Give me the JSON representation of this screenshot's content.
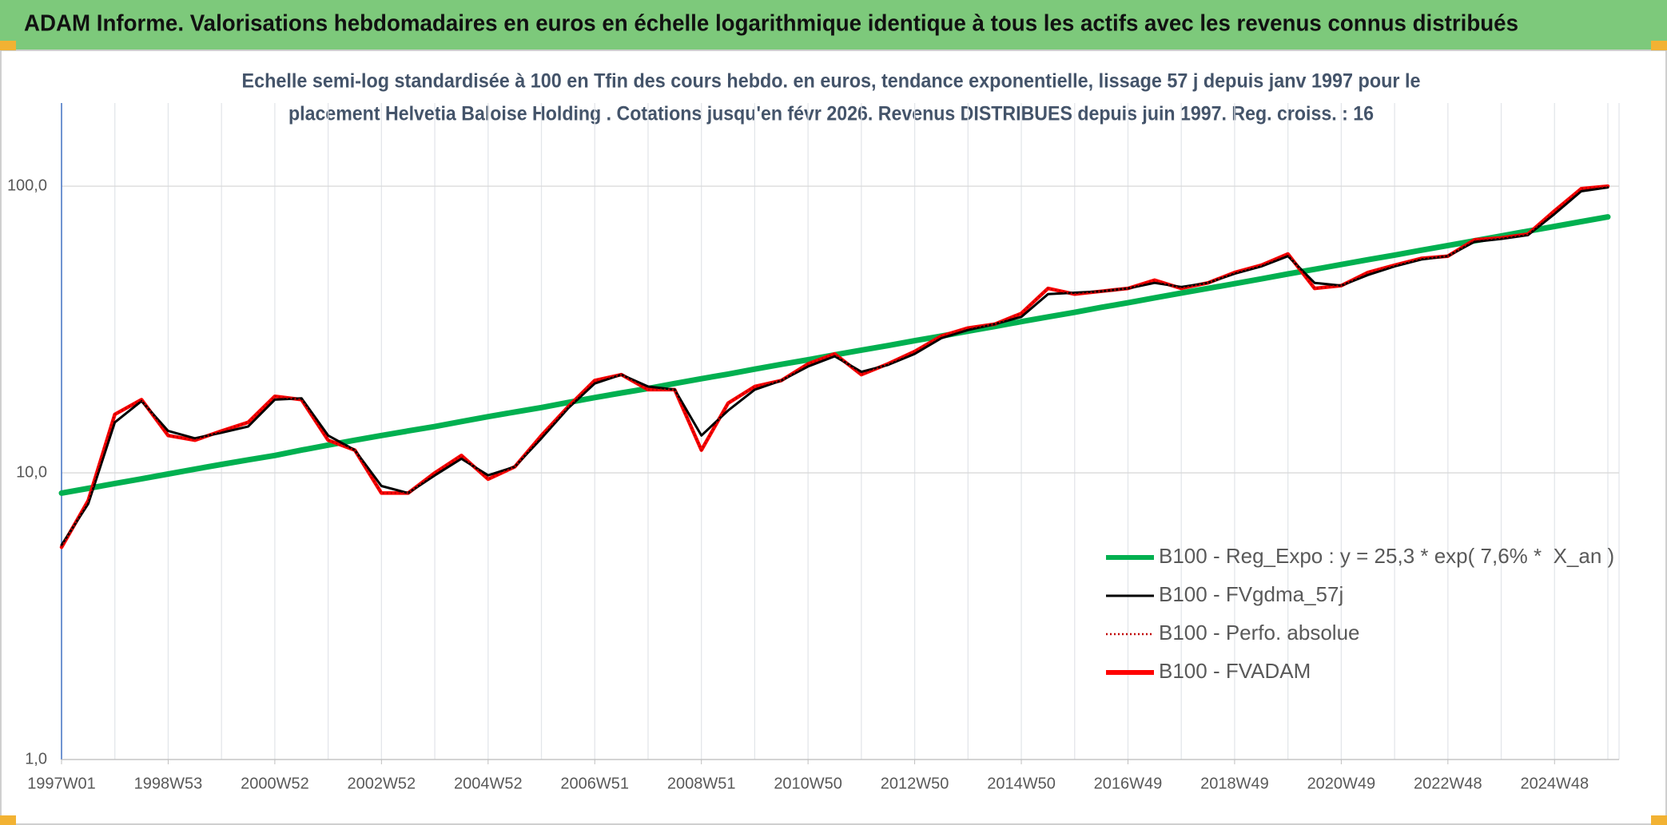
{
  "chart_data": {
    "type": "line",
    "title": "ADAM Informe. Valorisations hebdomadaires en euros en échelle logarithmique identique à tous les actifs avec les revenus connus distribués",
    "subtitle": [
      "Echelle semi-log standardisée à 100 en Tfin des cours hebdo. en euros, tendance exponentielle, lissage 57 j depuis janv 1997 pour le",
      "placement Helvetia Baloise Holding . Cotations jusqu'en févr 2026. Revenus DISTRIBUES depuis juin 1997. Reg. croiss. : 16"
    ],
    "categories": [
      "1997W01",
      null,
      null,
      null,
      "1998W53",
      null,
      null,
      null,
      "2000W52",
      null,
      null,
      null,
      "2002W52",
      null,
      null,
      null,
      "2004W52",
      null,
      null,
      null,
      "2006W51",
      null,
      null,
      null,
      "2008W51",
      null,
      null,
      null,
      "2010W50",
      null,
      null,
      null,
      "2012W50",
      null,
      null,
      null,
      "2014W50",
      null,
      null,
      null,
      "2016W49",
      null,
      null,
      null,
      "2018W49",
      null,
      null,
      null,
      "2020W49",
      null,
      null,
      null,
      "2022W48",
      null,
      null,
      null,
      "2024W48",
      null,
      null
    ],
    "log_scale": true,
    "ylim": [
      1,
      195
    ],
    "yticks": [
      {
        "value": 1,
        "label": "1,0"
      },
      {
        "value": 10,
        "label": "10,0"
      },
      {
        "value": 100,
        "label": "100,0"
      }
    ],
    "grid": true,
    "legend": "right",
    "series": [
      {
        "name": "B100 - Reg_Expo : y = 25,3 * exp( 7,6% *  X_an )",
        "color": "#00b050",
        "style": "solid",
        "values": [
          8.5,
          8.83,
          9.18,
          9.53,
          9.91,
          10.3,
          10.7,
          11.1,
          11.5,
          12.0,
          12.5,
          13.0,
          13.5,
          14.0,
          14.5,
          15.1,
          15.7,
          16.3,
          16.9,
          17.6,
          18.3,
          19.0,
          19.7,
          20.5,
          21.3,
          22.1,
          23.0,
          23.9,
          24.8,
          25.8,
          26.8,
          27.8,
          28.9,
          30.0,
          31.2,
          32.4,
          33.7,
          35.0,
          36.3,
          37.8,
          39.2,
          40.8,
          42.4,
          44.0,
          45.7,
          47.5,
          49.4,
          51.3,
          53.3,
          55.4,
          57.5,
          59.8,
          62.1,
          64.5,
          67.0,
          69.7,
          72.4,
          75.2,
          78.1
        ]
      },
      {
        "name": "B100 - FVgdma_57j",
        "color": "#000000",
        "style": "solid",
        "values": [
          5.6,
          7.8,
          15,
          17.8,
          14,
          13.2,
          13.8,
          14.5,
          18,
          18.2,
          13.5,
          12,
          9,
          8.5,
          9.8,
          11.2,
          9.8,
          10.5,
          13.2,
          16.8,
          20.5,
          22,
          20,
          19.5,
          13.5,
          16.5,
          19.5,
          21,
          23.5,
          25.5,
          22.5,
          23.8,
          26,
          29.5,
          31.5,
          33,
          35,
          42,
          42.5,
          43,
          44,
          46,
          44.5,
          46,
          49.5,
          52.5,
          57,
          46,
          45,
          49,
          52.5,
          55.5,
          57,
          64,
          65.5,
          67.5,
          80,
          96,
          99
        ]
      },
      {
        "name": "B100 - Perfo. absolue",
        "color": "#c00000",
        "style": "dotted",
        "values": [
          5.5,
          8,
          16,
          18,
          13.5,
          13,
          14,
          15,
          18.5,
          18,
          13,
          12,
          8.5,
          8.5,
          10,
          11.5,
          9.5,
          10.5,
          13.5,
          17,
          21,
          22,
          19.5,
          19.5,
          12,
          17.5,
          20,
          21,
          24,
          26,
          22,
          24,
          26.5,
          30,
          32,
          33,
          36,
          44,
          42,
          43,
          44,
          47,
          44,
          46,
          50,
          53,
          58,
          44,
          45,
          50,
          53,
          56,
          57,
          65,
          66,
          68,
          82,
          98,
          100
        ]
      },
      {
        "name": "B100 - FVADAM",
        "color": "#ff0000",
        "style": "solid",
        "values": [
          5.5,
          8,
          16,
          18,
          13.5,
          13,
          14,
          15,
          18.5,
          18,
          13,
          12,
          8.5,
          8.5,
          10,
          11.5,
          9.5,
          10.5,
          13.5,
          17,
          21,
          22,
          19.5,
          19.5,
          12,
          17.5,
          20,
          21,
          24,
          26,
          22,
          24,
          26.5,
          30,
          32,
          33,
          36,
          44,
          42,
          43,
          44,
          47,
          44,
          46,
          50,
          53,
          58,
          44,
          45,
          50,
          53,
          56,
          57,
          65,
          66,
          68,
          82,
          98,
          100
        ]
      }
    ]
  }
}
